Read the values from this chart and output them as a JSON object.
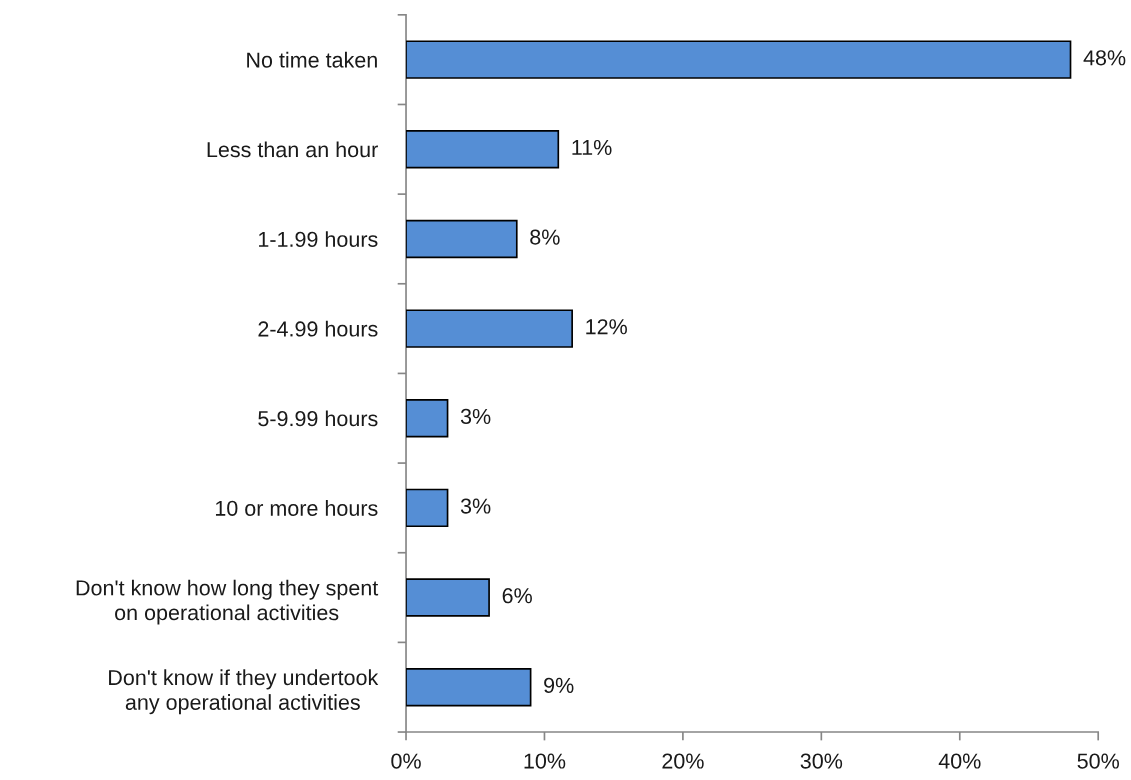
{
  "chart_data": {
    "type": "bar",
    "orientation": "horizontal",
    "categories": [
      "No time taken",
      "Less than an hour",
      "1-1.99 hours",
      "2-4.99 hours",
      "5-9.99 hours",
      "10 or more hours",
      "Don't know how long they spent\non operational activities",
      "Don't know if they undertook\nany operational activities"
    ],
    "values": [
      48,
      11,
      8,
      12,
      3,
      3,
      6,
      9
    ],
    "value_labels": [
      "48%",
      "11%",
      "8%",
      "12%",
      "3%",
      "3%",
      "6%",
      "9%"
    ],
    "color": "#558ed5",
    "xlim": [
      0,
      50
    ],
    "xticks": [
      {
        "value": 0,
        "label": "0%"
      },
      {
        "value": 10,
        "label": "10%"
      },
      {
        "value": 20,
        "label": "20%"
      },
      {
        "value": 30,
        "label": "30%"
      },
      {
        "value": 40,
        "label": "40%"
      },
      {
        "value": 50,
        "label": "50%"
      }
    ],
    "grid": false,
    "legend": false
  }
}
